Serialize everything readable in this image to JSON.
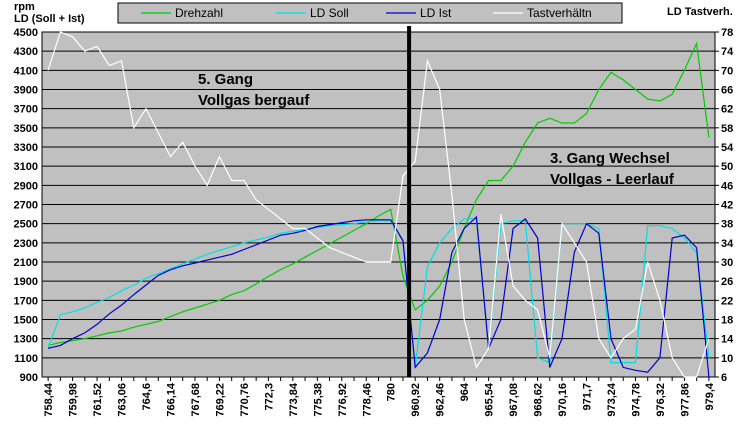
{
  "chart_data": {
    "type": "line",
    "ylabel": [
      "rpm",
      "LD (Soll + Ist)"
    ],
    "y2label": "LD Tastverh.",
    "annotations": [
      [
        "5. Gang",
        "Vollgas bergauf"
      ],
      [
        "3. Gang Wechsel",
        "Vollgas - Leerlauf"
      ]
    ],
    "categories": [
      "758,44",
      null,
      "759,98",
      null,
      "761,52",
      null,
      "763,06",
      null,
      "764,6",
      null,
      "766,14",
      null,
      "767,68",
      null,
      "769,22",
      null,
      "770,76",
      null,
      "772,3",
      null,
      "773,84",
      null,
      "775,38",
      null,
      "776,92",
      null,
      "778,46",
      null,
      "780",
      null,
      "960,92",
      null,
      "962,46",
      null,
      "964",
      null,
      "965,54",
      null,
      "967,08",
      null,
      "968,62",
      null,
      "970,16",
      null,
      "971,7",
      null,
      "973,24",
      null,
      "974,78",
      null,
      "976,32",
      null,
      "977,86",
      null,
      "979,4"
    ],
    "ylim": [
      900,
      4500
    ],
    "yticks": [
      900,
      1100,
      1300,
      1500,
      1700,
      1900,
      2100,
      2300,
      2500,
      2700,
      2900,
      3100,
      3300,
      3500,
      3700,
      3900,
      4100,
      4300,
      4500
    ],
    "y2lim": [
      6,
      78
    ],
    "y2ticks": [
      6,
      10,
      14,
      18,
      22,
      26,
      30,
      34,
      38,
      42,
      46,
      50,
      54,
      58,
      62,
      66,
      70,
      74,
      78
    ],
    "grid": true,
    "background": "#c0c0c0",
    "series": [
      {
        "name": "Drehzahl",
        "color": "#00cc00",
        "values": [
          1230,
          1260,
          1280,
          1300,
          1330,
          1360,
          1380,
          1420,
          1450,
          1480,
          1530,
          1580,
          1620,
          1660,
          1700,
          1760,
          1800,
          1870,
          1950,
          2020,
          2080,
          2150,
          2220,
          2290,
          2360,
          2430,
          2500,
          2580,
          2650,
          1950,
          1600,
          1700,
          1850,
          2100,
          2450,
          2750,
          2950,
          2950,
          3100,
          3350,
          3550,
          3600,
          3550,
          3550,
          3650,
          3900,
          4080,
          4000,
          3900,
          3800,
          3780,
          3850,
          4100,
          4380,
          3400
        ]
      },
      {
        "name": "LD Soll",
        "color": "#00e0e0",
        "values": [
          1200,
          1550,
          1580,
          1620,
          1680,
          1730,
          1800,
          1860,
          1930,
          1980,
          2030,
          2080,
          2130,
          2180,
          2220,
          2260,
          2300,
          2330,
          2360,
          2400,
          2420,
          2440,
          2460,
          2480,
          2490,
          2500,
          2520,
          2530,
          2530,
          2330,
          1000,
          2050,
          2300,
          2450,
          2550,
          2550,
          1200,
          2500,
          2530,
          2530,
          1100,
          1050,
          2500,
          2500,
          2500,
          2450,
          1050,
          1050,
          1050,
          2480,
          2480,
          2450,
          2350,
          2200,
          1100
        ]
      },
      {
        "name": "LD Ist",
        "color": "#0000cc",
        "values": [
          1200,
          1230,
          1300,
          1360,
          1450,
          1560,
          1650,
          1760,
          1860,
          1960,
          2020,
          2060,
          2090,
          2120,
          2150,
          2180,
          2230,
          2280,
          2330,
          2380,
          2400,
          2430,
          2470,
          2490,
          2510,
          2530,
          2540,
          2540,
          2540,
          2320,
          1000,
          1150,
          1500,
          2200,
          2450,
          2570,
          1200,
          1500,
          2450,
          2550,
          2350,
          1000,
          1300,
          2200,
          2500,
          2400,
          1300,
          1000,
          970,
          950,
          1100,
          2350,
          2380,
          2250,
          900
        ]
      },
      {
        "name": "Tastverhältn",
        "color": "#ffffff",
        "axis": "y2",
        "values": [
          70,
          78,
          77,
          74,
          75,
          71,
          72,
          58,
          62,
          57,
          52,
          55,
          50,
          46,
          52,
          47,
          47,
          43,
          41,
          39,
          37,
          37,
          35,
          33,
          32,
          31,
          30,
          30,
          30,
          48,
          51,
          72,
          66,
          44,
          18,
          8,
          12,
          40,
          25,
          22,
          20,
          10,
          38,
          34,
          30,
          14,
          10,
          14,
          16,
          30,
          22,
          10,
          6,
          6,
          14
        ]
      }
    ]
  }
}
